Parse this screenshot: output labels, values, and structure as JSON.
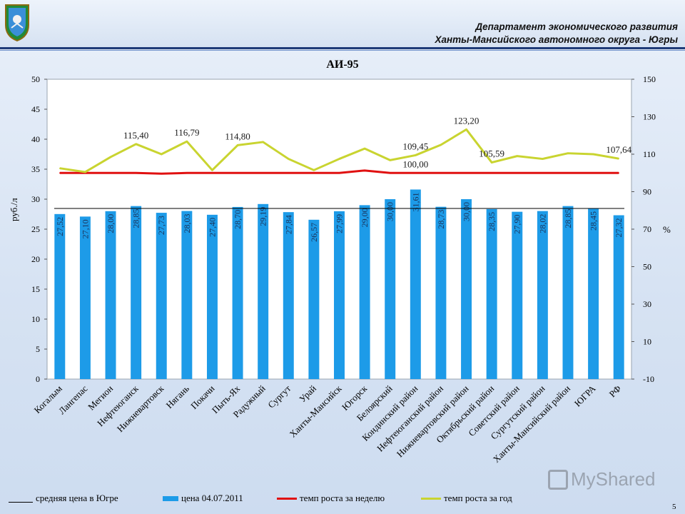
{
  "header": {
    "line1": "Департамент экономического развития",
    "line2": "Ханты-Мансийского автономного округа - Югры",
    "emblem_icon": "coat-of-arms-icon"
  },
  "page_number": "5",
  "watermark": "MyShared",
  "colors": {
    "bar": "#1d9be8",
    "weekly_line": "#e01010",
    "annual_line": "#c9d430",
    "average_line": "#000000"
  },
  "legend": {
    "average": "средняя цена в Югре",
    "price": "цена 04.07.2011",
    "weekly": "темп роста за неделю",
    "annual": "темп роста за год"
  },
  "chart_data": {
    "type": "bar",
    "title": "АИ-95",
    "ylabel": "руб./л",
    "y2label": "%",
    "ylim": [
      0,
      50
    ],
    "yticks": [
      0,
      5,
      10,
      15,
      20,
      25,
      30,
      35,
      40,
      45,
      50
    ],
    "y2lim": [
      -10,
      150
    ],
    "y2ticks": [
      -10,
      10,
      30,
      50,
      70,
      90,
      110,
      130,
      150
    ],
    "grid": false,
    "legend_position": "bottom",
    "categories": [
      "Когалым",
      "Лангепас",
      "Мегион",
      "Нефтеюганск",
      "Нижневартовск",
      "Нягань",
      "Покачи",
      "Пыть-Ях",
      "Радужный",
      "Сургут",
      "Урай",
      "Ханты-Мансийск",
      "Югорск",
      "Белоярский",
      "Кондинский район",
      "Нефтеюганский район",
      "Нижневартовский район",
      "Октябрьский район",
      "Советский район",
      "Сургутский район",
      "Ханты-Мансийский район",
      "ЮГРА",
      "РФ"
    ],
    "series": [
      {
        "name": "цена 04.07.2011",
        "axis": "left",
        "values": [
          27.52,
          27.1,
          28.0,
          28.85,
          27.73,
          28.03,
          27.4,
          28.7,
          29.19,
          27.84,
          26.57,
          27.99,
          29.0,
          30.0,
          31.61,
          28.73,
          30.0,
          28.35,
          27.9,
          28.02,
          28.85,
          28.45,
          27.32
        ],
        "labels": [
          "27,52",
          "27,10",
          "28,00",
          "28,85",
          "27,73",
          "28,03",
          "27,40",
          "28,70",
          "29,19",
          "27,84",
          "26,57",
          "27,99",
          "29,00",
          "30,00",
          "31,61",
          "28,73",
          "30,00",
          "28,35",
          "27,90",
          "28,02",
          "28,85",
          "28,45",
          "27,32"
        ]
      },
      {
        "name": "темп роста за неделю",
        "axis": "right",
        "values": [
          100.0,
          100.0,
          100.0,
          100.0,
          99.6,
          100.0,
          100.0,
          100.0,
          100.0,
          100.0,
          100.0,
          100.0,
          101.3,
          100.0,
          100.0,
          100.0,
          100.0,
          100.0,
          100.0,
          100.0,
          100.0,
          100.0,
          100.0
        ]
      },
      {
        "name": "темп роста за год",
        "axis": "right",
        "values": [
          102.5,
          100.5,
          108.5,
          115.4,
          110.0,
          116.79,
          101.5,
          114.8,
          116.5,
          107.5,
          101.5,
          107.5,
          113.0,
          106.8,
          109.45,
          115.0,
          123.2,
          105.59,
          109.0,
          107.5,
          110.5,
          110.0,
          107.64
        ]
      }
    ],
    "average_price": 28.45,
    "annotations": [
      {
        "text": "115,40",
        "category_index": 3,
        "value": 115.4
      },
      {
        "text": "116,79",
        "category_index": 5,
        "value": 116.79
      },
      {
        "text": "114,80",
        "category_index": 7,
        "value": 114.8
      },
      {
        "text": "109,45",
        "category_index": 14,
        "value": 109.45
      },
      {
        "text": "100,00",
        "category_index": 14,
        "value": 100.0
      },
      {
        "text": "123,20",
        "category_index": 16,
        "value": 123.2
      },
      {
        "text": "105,59",
        "category_index": 17,
        "value": 105.59
      },
      {
        "text": "107,64",
        "category_index": 22,
        "value": 107.64
      }
    ]
  }
}
